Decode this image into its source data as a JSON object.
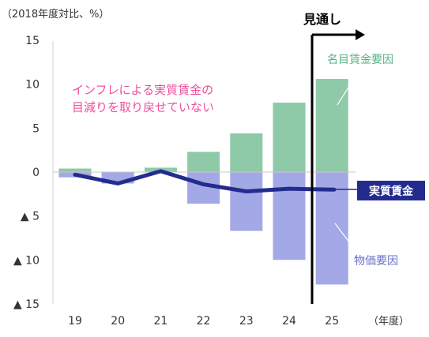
{
  "chart_data": {
    "type": "bar",
    "unit_label": "（2018年度対比、%）",
    "x_unit_label": "（年度）",
    "categories": [
      "19",
      "20",
      "21",
      "22",
      "23",
      "24",
      "25"
    ],
    "ylim": [
      -15,
      15
    ],
    "y_ticks": [
      {
        "value": 15,
        "label": "15"
      },
      {
        "value": 10,
        "label": "10"
      },
      {
        "value": 5,
        "label": "5"
      },
      {
        "value": 0,
        "label": "0"
      },
      {
        "value": -5,
        "label": "▲ 5"
      },
      {
        "value": -10,
        "label": "▲ 10"
      },
      {
        "value": -15,
        "label": "▲ 15"
      }
    ],
    "series": [
      {
        "name": "名目賃金要因",
        "kind": "bar",
        "color": "#8ec9a8",
        "values": [
          0.4,
          -0.2,
          0.5,
          2.3,
          4.4,
          7.9,
          10.6
        ]
      },
      {
        "name": "物価要因",
        "kind": "bar",
        "color": "#a3a8e6",
        "values": [
          -0.6,
          -1.3,
          0.0,
          -3.6,
          -6.7,
          -10.0,
          -12.8
        ]
      },
      {
        "name": "実質賃金",
        "kind": "line",
        "color": "#232c8e",
        "values": [
          -0.3,
          -1.3,
          0.1,
          -1.4,
          -2.2,
          -1.9,
          -2.0
        ]
      }
    ],
    "forecast_label": "見通し",
    "annotation": [
      "インフレによる実質賃金の",
      "目減りを取り戻せていない"
    ],
    "annotation_color": "#ec4f9c",
    "grid": false,
    "zero_line_color": "#c8c8c8"
  }
}
